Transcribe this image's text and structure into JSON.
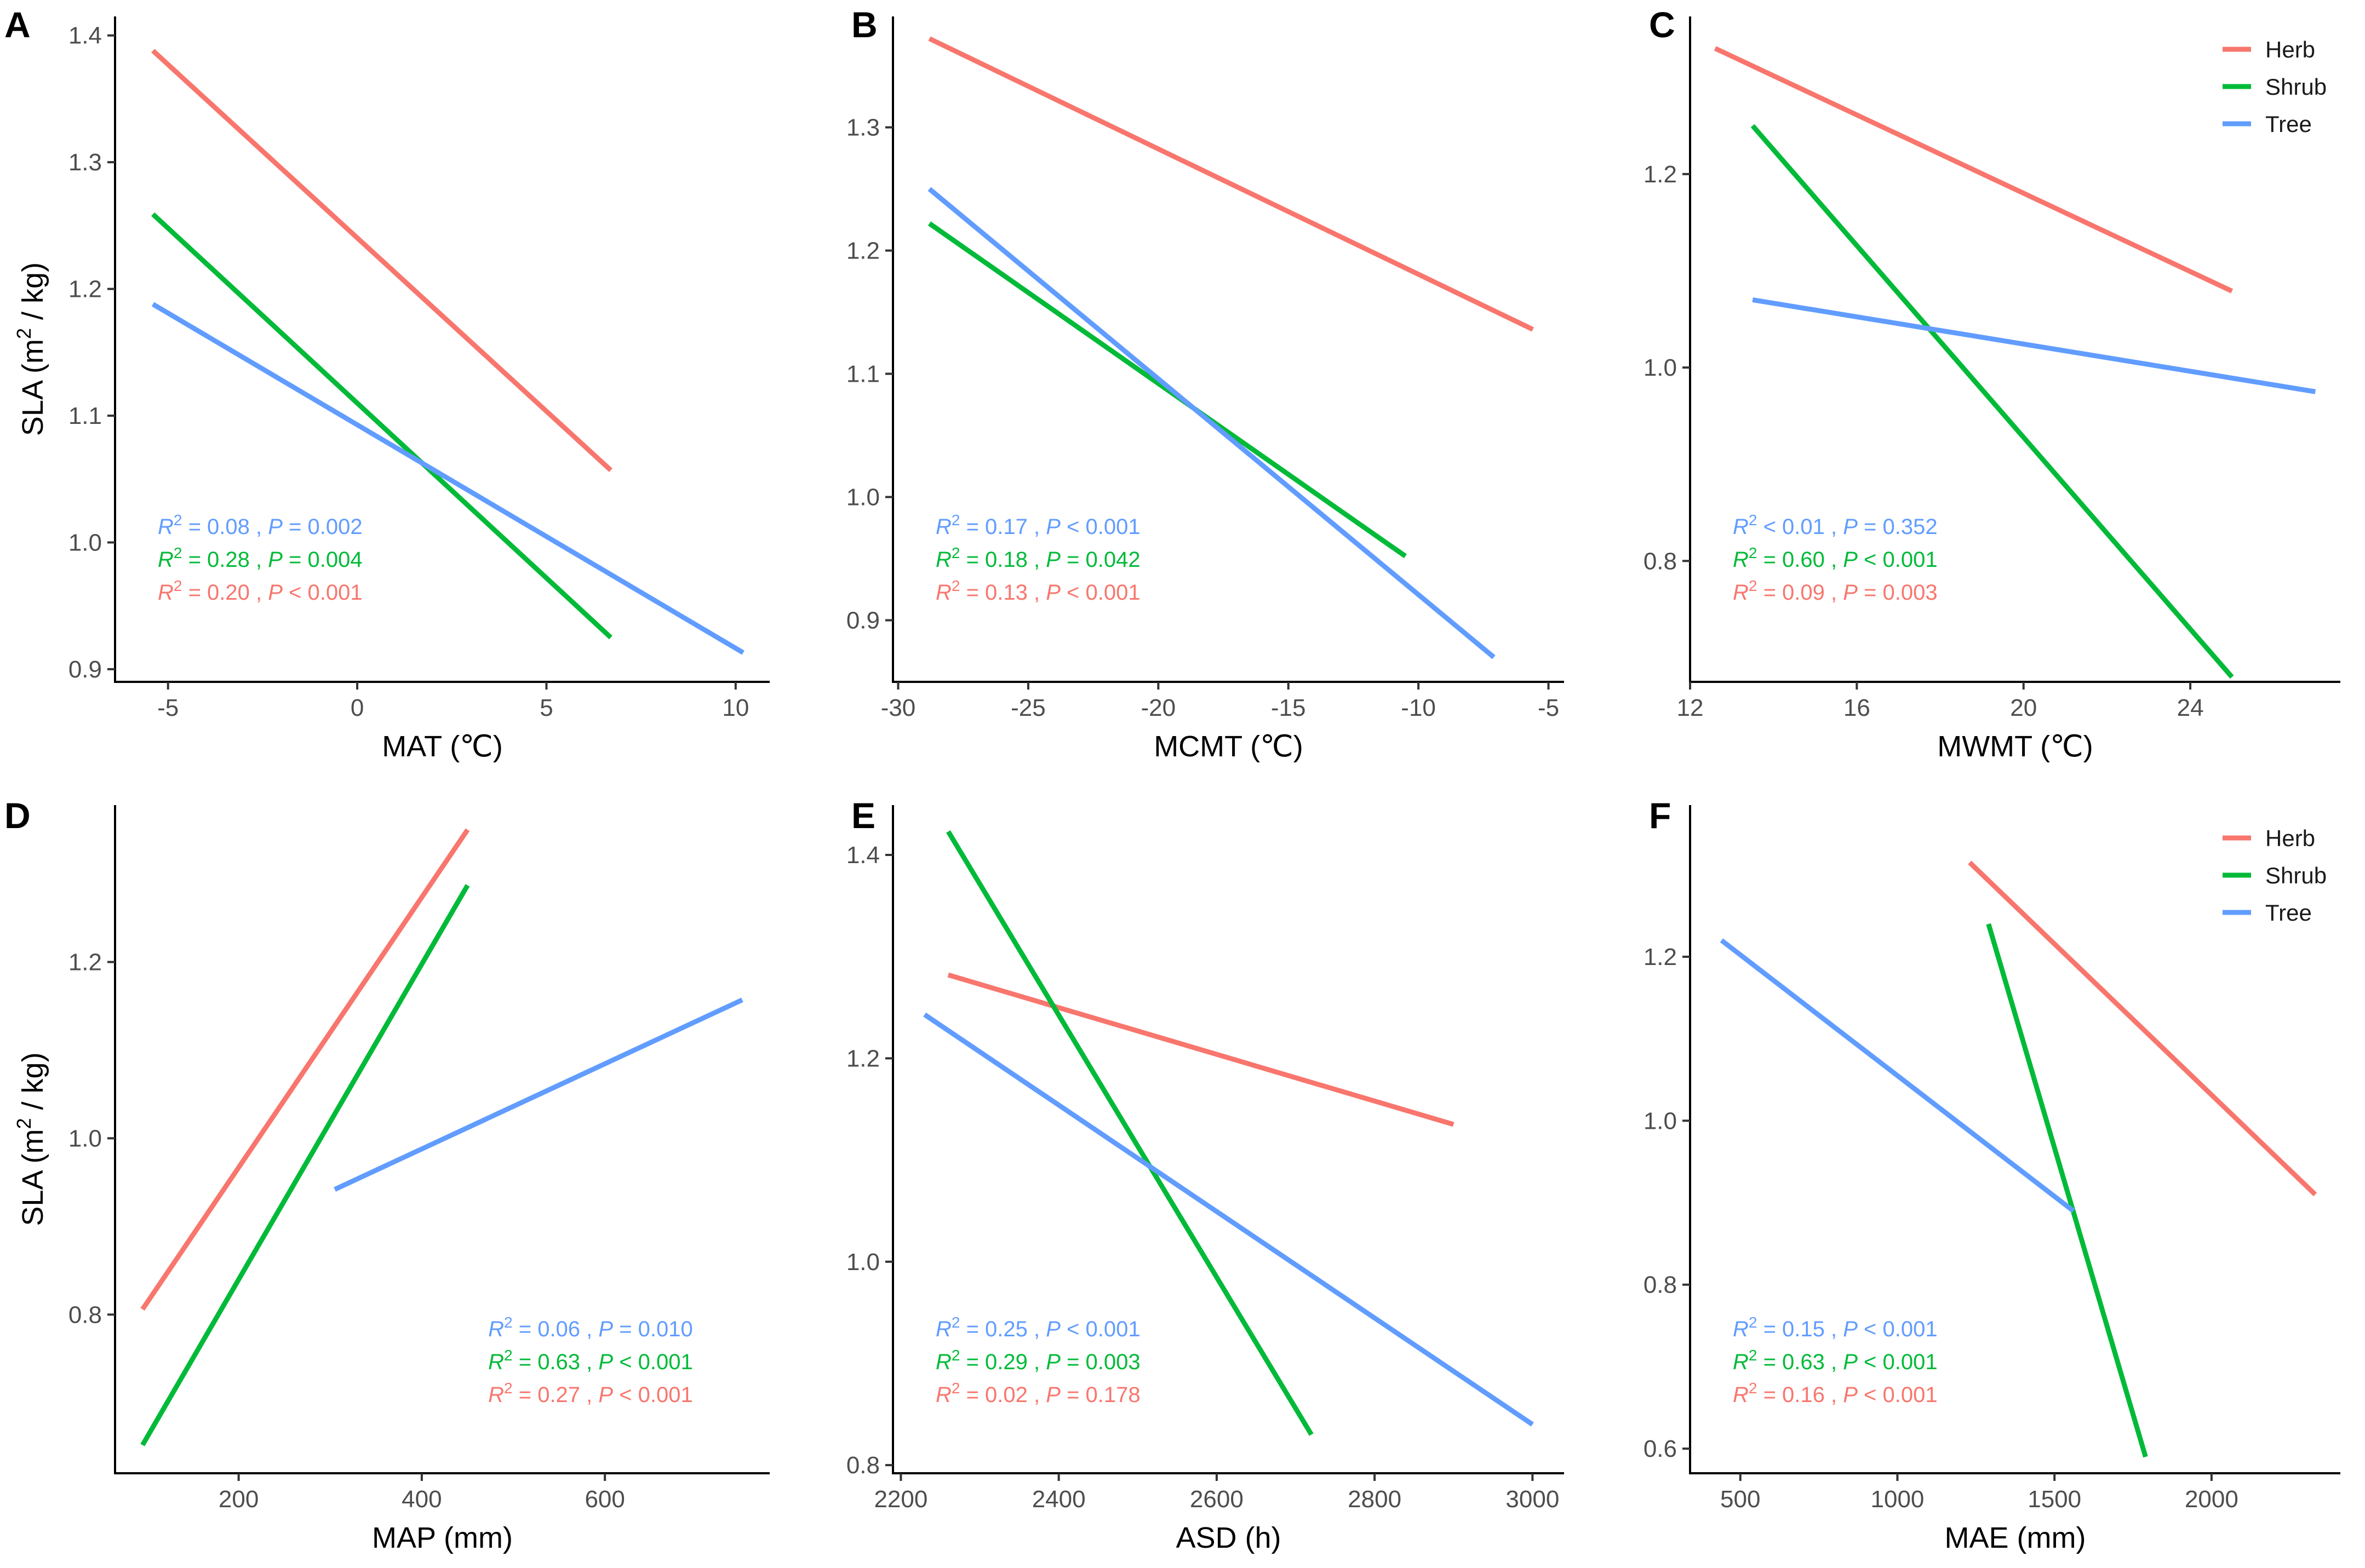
{
  "colors": {
    "Herb": "#F8766D",
    "Shrub": "#00BA38",
    "Tree": "#619CFF"
  },
  "legend": [
    "Herb",
    "Shrub",
    "Tree"
  ],
  "chart_data": [
    {
      "panel": "A",
      "type": "line",
      "xlabel": "MAT (℃)",
      "ylabel_main": "SLA (m",
      "ylabel_sup": "2",
      "ylabel_end": " / kg)",
      "xlim": [
        -6.4,
        10.9
      ],
      "ylim": [
        0.89,
        1.415
      ],
      "xticks": [
        -5,
        0,
        5,
        10
      ],
      "yticks": [
        0.9,
        1.0,
        1.1,
        1.2,
        1.3,
        1.4
      ],
      "series": [
        {
          "name": "Herb",
          "x": [
            -5.4,
            6.7
          ],
          "y": [
            1.388,
            1.057
          ]
        },
        {
          "name": "Shrub",
          "x": [
            -5.4,
            6.7
          ],
          "y": [
            1.259,
            0.925
          ]
        },
        {
          "name": "Tree",
          "x": [
            -5.4,
            10.2
          ],
          "y": [
            1.188,
            0.913
          ]
        }
      ],
      "stats": [
        {
          "series": "Tree",
          "r2_op": "=",
          "r2": "0.08",
          "p_op": "=",
          "p": "0.002"
        },
        {
          "series": "Shrub",
          "r2_op": "=",
          "r2": "0.28",
          "p_op": "=",
          "p": "0.004"
        },
        {
          "series": "Herb",
          "r2_op": "=",
          "r2": "0.20",
          "p_op": "<",
          "p": "0.001"
        }
      ],
      "legend": false
    },
    {
      "panel": "B",
      "type": "line",
      "xlabel": "MCMT (℃)",
      "ylabel_main": "",
      "ylabel_sup": "",
      "ylabel_end": "",
      "xlim": [
        -30.2,
        -4.4
      ],
      "ylim": [
        0.85,
        1.39
      ],
      "xticks": [
        -30,
        -25,
        -20,
        -15,
        -10,
        -5
      ],
      "yticks": [
        0.9,
        1.0,
        1.1,
        1.2,
        1.3
      ],
      "series": [
        {
          "name": "Herb",
          "x": [
            -28.8,
            -5.6
          ],
          "y": [
            1.372,
            1.136
          ]
        },
        {
          "name": "Shrub",
          "x": [
            -28.8,
            -10.5
          ],
          "y": [
            1.222,
            0.952
          ]
        },
        {
          "name": "Tree",
          "x": [
            -28.8,
            -7.1
          ],
          "y": [
            1.25,
            0.87
          ]
        }
      ],
      "stats": [
        {
          "series": "Tree",
          "r2_op": "=",
          "r2": "0.17",
          "p_op": "<",
          "p": "0.001"
        },
        {
          "series": "Shrub",
          "r2_op": "=",
          "r2": "0.18",
          "p_op": "=",
          "p": "0.042"
        },
        {
          "series": "Herb",
          "r2_op": "=",
          "r2": "0.13",
          "p_op": "<",
          "p": "0.001"
        }
      ],
      "legend": false
    },
    {
      "panel": "C",
      "type": "line",
      "xlabel": "MWMT (℃)",
      "ylabel_main": "",
      "ylabel_sup": "",
      "ylabel_end": "",
      "xlim": [
        12.0,
        27.6
      ],
      "ylim": [
        0.675,
        1.363
      ],
      "xticks": [
        12,
        16,
        20,
        24
      ],
      "yticks": [
        0.8,
        1.0,
        1.2
      ],
      "series": [
        {
          "name": "Herb",
          "x": [
            12.6,
            25.0
          ],
          "y": [
            1.33,
            1.079
          ]
        },
        {
          "name": "Shrub",
          "x": [
            13.5,
            25.0
          ],
          "y": [
            1.25,
            0.68
          ]
        },
        {
          "name": "Tree",
          "x": [
            13.5,
            27.0
          ],
          "y": [
            1.07,
            0.975
          ]
        }
      ],
      "stats": [
        {
          "series": "Tree",
          "r2_op": "<",
          "r2": "0.01",
          "p_op": "=",
          "p": "0.352"
        },
        {
          "series": "Shrub",
          "r2_op": "=",
          "r2": "0.60",
          "p_op": "<",
          "p": "0.001"
        },
        {
          "series": "Herb",
          "r2_op": "=",
          "r2": "0.09",
          "p_op": "=",
          "p": "0.003"
        }
      ],
      "legend": true
    },
    {
      "panel": "D",
      "type": "line",
      "xlabel": "MAP (mm)",
      "ylabel_main": "SLA (m",
      "ylabel_sup": "2",
      "ylabel_end": " / kg)",
      "xlim": [
        65,
        780
      ],
      "ylim": [
        0.62,
        1.378
      ],
      "xticks": [
        200,
        400,
        600
      ],
      "yticks": [
        0.8,
        1.0,
        1.2
      ],
      "series": [
        {
          "name": "Herb",
          "x": [
            95,
            450
          ],
          "y": [
            0.806,
            1.35
          ]
        },
        {
          "name": "Shrub",
          "x": [
            95,
            450
          ],
          "y": [
            0.652,
            1.287
          ]
        },
        {
          "name": "Tree",
          "x": [
            305,
            750
          ],
          "y": [
            0.942,
            1.157
          ]
        }
      ],
      "stats": [
        {
          "series": "Tree",
          "r2_op": "=",
          "r2": "0.06",
          "p_op": "=",
          "p": "0.010"
        },
        {
          "series": "Shrub",
          "r2_op": "=",
          "r2": "0.63",
          "p_op": "<",
          "p": "0.001"
        },
        {
          "series": "Herb",
          "r2_op": "=",
          "r2": "0.27",
          "p_op": "<",
          "p": "0.001"
        }
      ],
      "legend": false
    },
    {
      "panel": "E",
      "type": "line",
      "xlabel": "ASD (h)",
      "ylabel_main": "",
      "ylabel_sup": "",
      "ylabel_end": "",
      "xlim": [
        2190,
        3040
      ],
      "ylim": [
        0.792,
        1.449
      ],
      "xticks": [
        2200,
        2400,
        2600,
        2800,
        3000
      ],
      "yticks": [
        0.8,
        1.0,
        1.2,
        1.4
      ],
      "series": [
        {
          "name": "Herb",
          "x": [
            2260,
            2900
          ],
          "y": [
            1.282,
            1.135
          ]
        },
        {
          "name": "Shrub",
          "x": [
            2260,
            2720
          ],
          "y": [
            1.423,
            0.83
          ]
        },
        {
          "name": "Tree",
          "x": [
            2230,
            3000
          ],
          "y": [
            1.243,
            0.84
          ]
        }
      ],
      "stats": [
        {
          "series": "Tree",
          "r2_op": "=",
          "r2": "0.25",
          "p_op": "<",
          "p": "0.001"
        },
        {
          "series": "Shrub",
          "r2_op": "=",
          "r2": "0.29",
          "p_op": "=",
          "p": "0.003"
        },
        {
          "series": "Herb",
          "r2_op": "=",
          "r2": "0.02",
          "p_op": "=",
          "p": "0.178"
        }
      ],
      "legend": false
    },
    {
      "panel": "F",
      "type": "line",
      "xlabel": "MAE (mm)",
      "ylabel_main": "",
      "ylabel_sup": "",
      "ylabel_end": "",
      "xlim": [
        340,
        2410
      ],
      "ylim": [
        0.57,
        1.385
      ],
      "xticks": [
        500,
        1000,
        1500,
        2000
      ],
      "yticks": [
        0.6,
        0.8,
        1.0,
        1.2
      ],
      "series": [
        {
          "name": "Herb",
          "x": [
            1230,
            2330
          ],
          "y": [
            1.315,
            0.91
          ]
        },
        {
          "name": "Shrub",
          "x": [
            1290,
            1790
          ],
          "y": [
            1.24,
            0.59
          ]
        },
        {
          "name": "Tree",
          "x": [
            440,
            1560
          ],
          "y": [
            1.22,
            0.89
          ]
        }
      ],
      "stats": [
        {
          "series": "Tree",
          "r2_op": "=",
          "r2": "0.15",
          "p_op": "<",
          "p": "0.001"
        },
        {
          "series": "Shrub",
          "r2_op": "=",
          "r2": "0.63",
          "p_op": "<",
          "p": "0.001"
        },
        {
          "series": "Herb",
          "r2_op": "=",
          "r2": "0.16",
          "p_op": "<",
          "p": "0.001"
        }
      ],
      "legend": true
    }
  ]
}
